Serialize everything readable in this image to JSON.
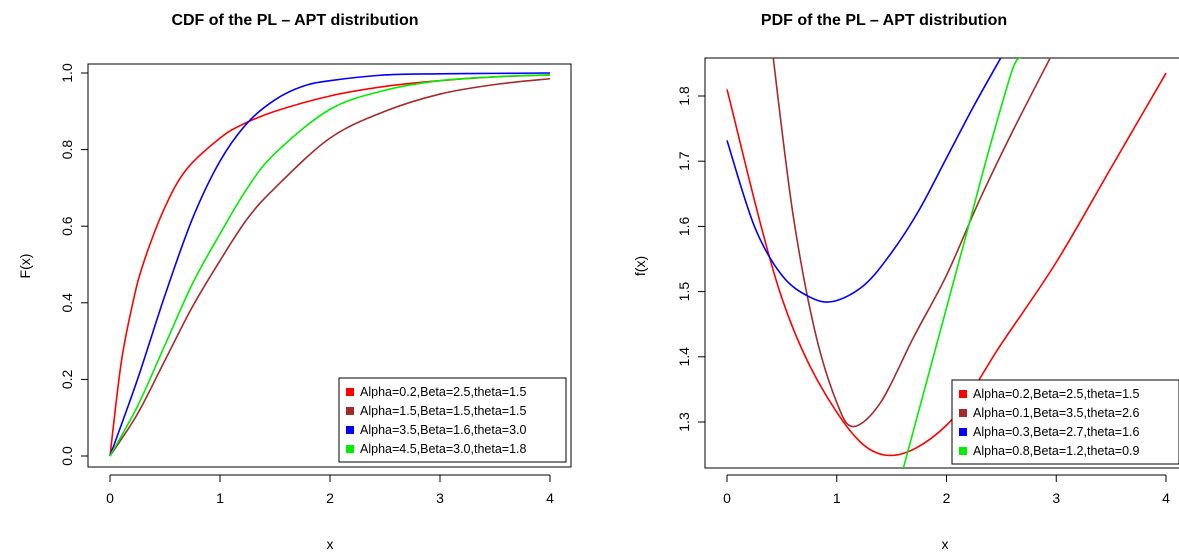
{
  "chart_data": [
    {
      "id": "cdf",
      "type": "line",
      "title": "CDF of the PL – APT distribution",
      "xlabel": "x",
      "ylabel": "F(x)",
      "xlim": [
        0,
        4
      ],
      "ylim": [
        0,
        1
      ],
      "xticks": [
        "0",
        "1",
        "2",
        "3",
        "4"
      ],
      "yticks": [
        "0.0",
        "0.2",
        "0.4",
        "0.6",
        "0.8",
        "1.0"
      ],
      "grid": false,
      "legend_position": "bottom-right",
      "series": [
        {
          "name": "Alpha=0.2,Beta=2.5,theta=1.5",
          "color": "#ff0000",
          "x": [
            0,
            0.1,
            0.2,
            0.3,
            0.5,
            0.7,
            1.0,
            1.2,
            1.5,
            2.0,
            2.5,
            3.0,
            3.5,
            4.0
          ],
          "y": [
            0,
            0.24,
            0.39,
            0.5,
            0.65,
            0.75,
            0.83,
            0.865,
            0.9,
            0.94,
            0.965,
            0.98,
            0.99,
            0.995
          ]
        },
        {
          "name": "Alpha=1.5,Beta=1.5,theta=1.5",
          "color": "#a52a2a",
          "x": [
            0,
            0.25,
            0.5,
            0.75,
            1.0,
            1.25,
            1.5,
            2.0,
            2.5,
            3.0,
            3.5,
            4.0
          ],
          "y": [
            0,
            0.11,
            0.25,
            0.39,
            0.51,
            0.62,
            0.7,
            0.83,
            0.9,
            0.945,
            0.97,
            0.985
          ]
        },
        {
          "name": "Alpha=3.5,Beta=1.6,theta=3.0",
          "color": "#0000ff",
          "x": [
            0,
            0.25,
            0.5,
            0.75,
            1.0,
            1.25,
            1.5,
            1.75,
            2.0,
            2.5,
            3.0,
            3.5,
            4.0
          ],
          "y": [
            0,
            0.2,
            0.42,
            0.62,
            0.77,
            0.87,
            0.93,
            0.965,
            0.98,
            0.995,
            0.998,
            0.999,
            1.0
          ]
        },
        {
          "name": "Alpha=4.5,Beta=3.0,theta=1.8",
          "color": "#00ee00",
          "x": [
            0,
            0.25,
            0.5,
            0.75,
            1.0,
            1.25,
            1.5,
            2.0,
            2.5,
            3.0,
            3.5,
            4.0
          ],
          "y": [
            0,
            0.13,
            0.29,
            0.45,
            0.58,
            0.7,
            0.79,
            0.905,
            0.955,
            0.98,
            0.99,
            0.995
          ]
        }
      ]
    },
    {
      "id": "pdf",
      "type": "line",
      "title": "PDF of the PL – APT distribution",
      "xlabel": "x",
      "ylabel": "f(x)",
      "xlim": [
        0,
        4
      ],
      "ylim": [
        1.225,
        1.855
      ],
      "xticks": [
        "0",
        "1",
        "2",
        "3",
        "4"
      ],
      "yticks": [
        "1.3",
        "1.4",
        "1.5",
        "1.6",
        "1.7",
        "1.8"
      ],
      "grid": false,
      "legend_position": "bottom-right",
      "series": [
        {
          "name": "Alpha=0.2,Beta=2.5,theta=1.5",
          "color": "#ff0000",
          "x": [
            0,
            0.5,
            1.0,
            1.45,
            2.0,
            2.5,
            3.0,
            3.5,
            4.0
          ],
          "y": [
            1.81,
            1.49,
            1.315,
            1.249,
            1.295,
            1.42,
            1.545,
            1.69,
            1.835
          ]
        },
        {
          "name": "Alpha=0.1,Beta=3.5,theta=2.6",
          "color": "#a52a2a",
          "x": [
            0.42,
            0.6,
            0.8,
            1.0,
            1.15,
            1.4,
            1.7,
            2.0,
            2.3,
            2.6,
            2.95
          ],
          "y": [
            1.86,
            1.62,
            1.44,
            1.33,
            1.293,
            1.33,
            1.43,
            1.525,
            1.64,
            1.745,
            1.86
          ]
        },
        {
          "name": "Alpha=0.3,Beta=2.7,theta=1.6",
          "color": "#0000ff",
          "x": [
            0,
            0.25,
            0.5,
            0.75,
            0.97,
            1.25,
            1.5,
            1.75,
            2.0,
            2.25,
            2.5
          ],
          "y": [
            1.732,
            1.6,
            1.525,
            1.492,
            1.485,
            1.51,
            1.56,
            1.625,
            1.705,
            1.785,
            1.86
          ]
        },
        {
          "name": "Alpha=0.8,Beta=1.2,theta=0.9",
          "color": "#00ee00",
          "x": [
            1.6,
            1.8,
            2.0,
            2.2,
            2.4,
            2.6,
            2.68
          ],
          "y": [
            1.225,
            1.35,
            1.475,
            1.6,
            1.725,
            1.84,
            1.86
          ]
        }
      ]
    }
  ]
}
